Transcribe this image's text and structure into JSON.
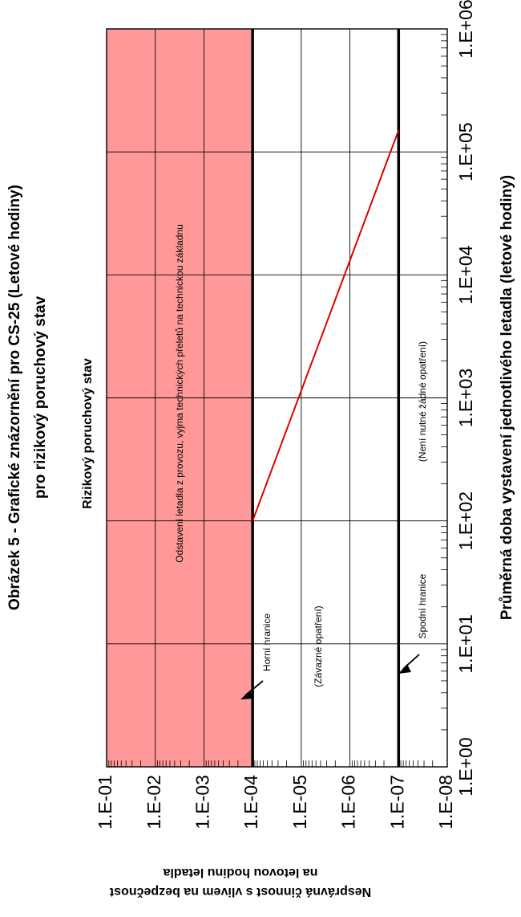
{
  "chart_data": {
    "type": "line",
    "title_lines": [
      "Obrázek 5 - Grafické znázornění pro CS-25 (Letové hodiny)",
      "pro rizikový poruchový stav"
    ],
    "subtitle": "Rizikový poruchový stav",
    "xlabel": "Průměrná doba vystavení jednotlivého letadla (letové hodiny)",
    "ylabel_lines": [
      "Nesprávná činnost s vlivem na bezpečnost",
      "na letovou hodinu letadla"
    ],
    "x_scale": "log",
    "y_scale": "log",
    "xlim": [
      1,
      1000000
    ],
    "ylim": [
      1e-08,
      0.1
    ],
    "x_ticks": [
      "1.E+00",
      "1.E+01",
      "1.E+02",
      "1.E+03",
      "1.E+04",
      "1.E+05",
      "1.E+06"
    ],
    "y_ticks": [
      "1.E-01",
      "1.E-02",
      "1.E-03",
      "1.E-04",
      "1.E-05",
      "1.E-06",
      "1.E-07",
      "1.E-08"
    ],
    "grid": true,
    "shaded_region": {
      "y_from": 0.0001,
      "y_to": 0.1,
      "color": "#ff9999"
    },
    "upper_limit": 0.0001,
    "lower_limit": 1e-07,
    "series": [
      {
        "x": [
          100,
          150000
        ],
        "y": [
          0.0001,
          1e-07
        ],
        "color": "#dd0000"
      }
    ],
    "annotations": {
      "shaded": "Odstavení letadla z provozu, vyjma technických přeletů na technickou základnu",
      "middle": "(Závazné opatření)",
      "lower_region": "(Není nutné žádné opatření)",
      "upper_label": "Horní hranice",
      "lower_label": "Spodní hranice"
    }
  }
}
